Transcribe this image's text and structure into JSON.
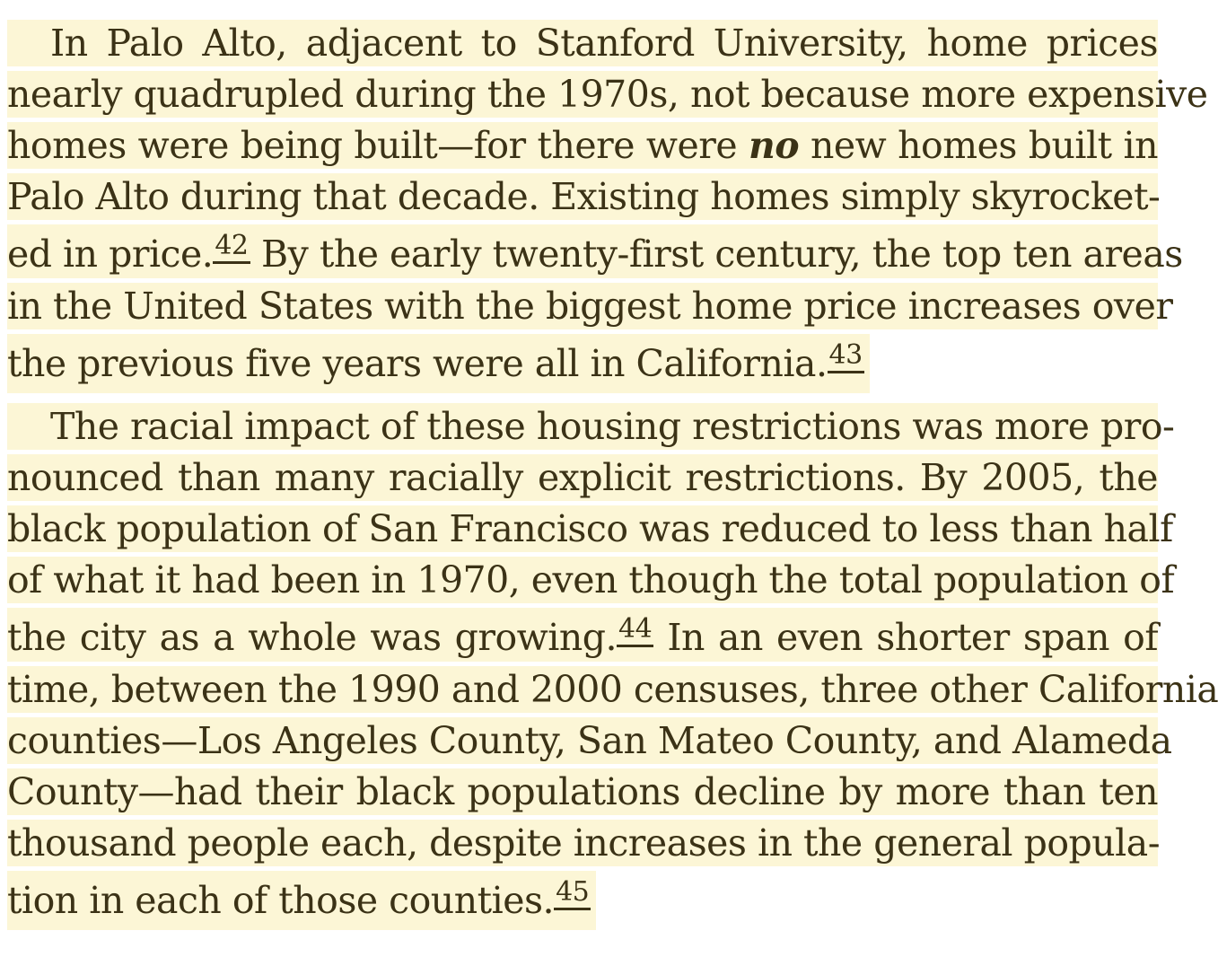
{
  "paragraphs": [
    {
      "lines": [
        "In Palo Alto, adjacent to Stanford University, home prices",
        "nearly quadrupled during the 1970s, not because more expensive",
        {
          "pre": "homes were being built—for there were ",
          "em": "no",
          "post": " new homes built in"
        },
        "Palo Alto during that decade. Existing homes simply skyrocket-",
        {
          "pre": "ed in price.",
          "note": "42",
          "post": " By the early twenty-first century, the top ten areas"
        },
        "in the United States with the biggest home price increases over",
        {
          "pre": "the previous five years were all in California.",
          "note": "43"
        }
      ]
    },
    {
      "lines": [
        "The racial impact of these housing restrictions was more pro-",
        "nounced than many racially explicit restrictions. By 2005, the",
        "black population of San Francisco was reduced to less than half",
        "of what it had been in 1970, even though the total population of",
        {
          "pre": "the city as a whole was growing.",
          "note": "44",
          "post": " In an even shorter span of"
        },
        "time, between the 1990 and 2000 censuses, three other California",
        "counties—Los Angeles County, San Mateo County, and Alameda",
        "County—had their black populations decline by more than ten",
        "thousand people each, despite increases in the general popula-",
        {
          "pre": "tion in each of those counties.",
          "note": "45"
        }
      ]
    }
  ]
}
